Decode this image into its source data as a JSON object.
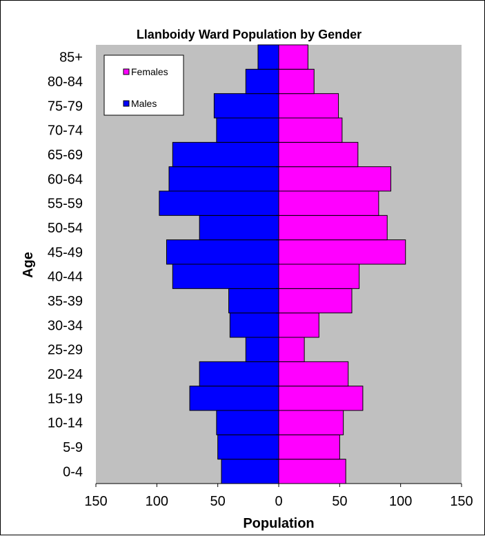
{
  "chart_data": {
    "type": "bar",
    "orientation": "horizontal-population-pyramid",
    "title": "Llanboidy Ward Population by Gender",
    "xlabel": "Population",
    "ylabel": "Age",
    "categories": [
      "0-4",
      "5-9",
      "10-14",
      "15-19",
      "20-24",
      "25-29",
      "30-34",
      "35-39",
      "40-44",
      "45-49",
      "50-54",
      "55-59",
      "60-64",
      "65-69",
      "70-74",
      "75-79",
      "80-84",
      "85+"
    ],
    "series": [
      {
        "name": "Males",
        "color": "#0000ff",
        "values": [
          47,
          50,
          51,
          73,
          65,
          27,
          40,
          41,
          87,
          92,
          65,
          98,
          90,
          87,
          51,
          53,
          27,
          17
        ]
      },
      {
        "name": "Females",
        "color": "#ff00ff",
        "values": [
          55,
          50,
          53,
          69,
          57,
          21,
          33,
          60,
          66,
          104,
          89,
          82,
          92,
          65,
          52,
          49,
          29,
          24
        ]
      }
    ],
    "xlim": [
      -150,
      150
    ],
    "xticks": [
      -150,
      -100,
      -50,
      0,
      50,
      100,
      150
    ],
    "xtick_labels": [
      "150",
      "100",
      "50",
      "0",
      "50",
      "100",
      "150"
    ],
    "plot_background": "#c0c0c0",
    "grid": false,
    "legend_position": "top-left"
  }
}
